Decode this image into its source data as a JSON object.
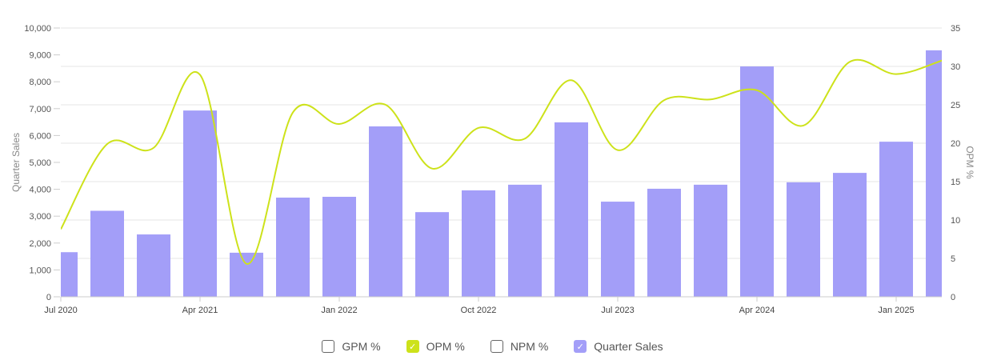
{
  "chart_data": {
    "type": "bar+line",
    "categories": [
      "Jul 2020",
      "Oct 2020",
      "Jan 2021",
      "Apr 2021",
      "Jul 2021",
      "Oct 2021",
      "Jan 2022",
      "Apr 2022",
      "Jul 2022",
      "Oct 2022",
      "Jan 2023",
      "Apr 2023",
      "Jul 2023",
      "Oct 2023",
      "Jan 2024",
      "Apr 2024",
      "Jul 2024",
      "Oct 2024",
      "Jan 2025",
      "Apr 2025"
    ],
    "x_tick_labels": [
      "Jul 2020",
      "Apr 2021",
      "Jan 2022",
      "Oct 2022",
      "Jul 2023",
      "Apr 2024",
      "Jan 2025"
    ],
    "series": [
      {
        "name": "Quarter Sales",
        "type": "bar",
        "axis": "left",
        "color": "#a39ef8",
        "values": [
          1660,
          3200,
          2320,
          6930,
          1640,
          3690,
          3720,
          6340,
          3150,
          3960,
          4170,
          6490,
          3540,
          4020,
          4170,
          8570,
          4260,
          4610,
          5770,
          9170
        ]
      },
      {
        "name": "OPM %",
        "type": "line",
        "axis": "right",
        "color": "#cde21a",
        "values": [
          8.8,
          19.9,
          19.4,
          28.9,
          4.3,
          24.0,
          22.5,
          25.0,
          16.7,
          22.0,
          20.6,
          28.2,
          19.1,
          25.6,
          25.7,
          26.9,
          22.3,
          30.6,
          29.0,
          30.8
        ]
      }
    ],
    "ylabel_left": "Quarter Sales",
    "ylabel_right": "OPM %",
    "ylim_left": [
      0,
      10000
    ],
    "ylim_right": [
      0,
      35
    ],
    "left_ticks": [
      "0",
      "1,000",
      "2,000",
      "3,000",
      "4,000",
      "5,000",
      "6,000",
      "7,000",
      "8,000",
      "9,000",
      "10,000"
    ],
    "right_ticks": [
      "0",
      "5",
      "10",
      "15",
      "20",
      "25",
      "30",
      "35"
    ],
    "grid": true,
    "legend_position": "bottom"
  },
  "legend": [
    {
      "label": "GPM %",
      "checked": false,
      "color": "#ffffff"
    },
    {
      "label": "OPM %",
      "checked": true,
      "color": "#cde21a"
    },
    {
      "label": "NPM %",
      "checked": false,
      "color": "#ffffff"
    },
    {
      "label": "Quarter Sales",
      "checked": true,
      "color": "#a39ef8"
    }
  ]
}
